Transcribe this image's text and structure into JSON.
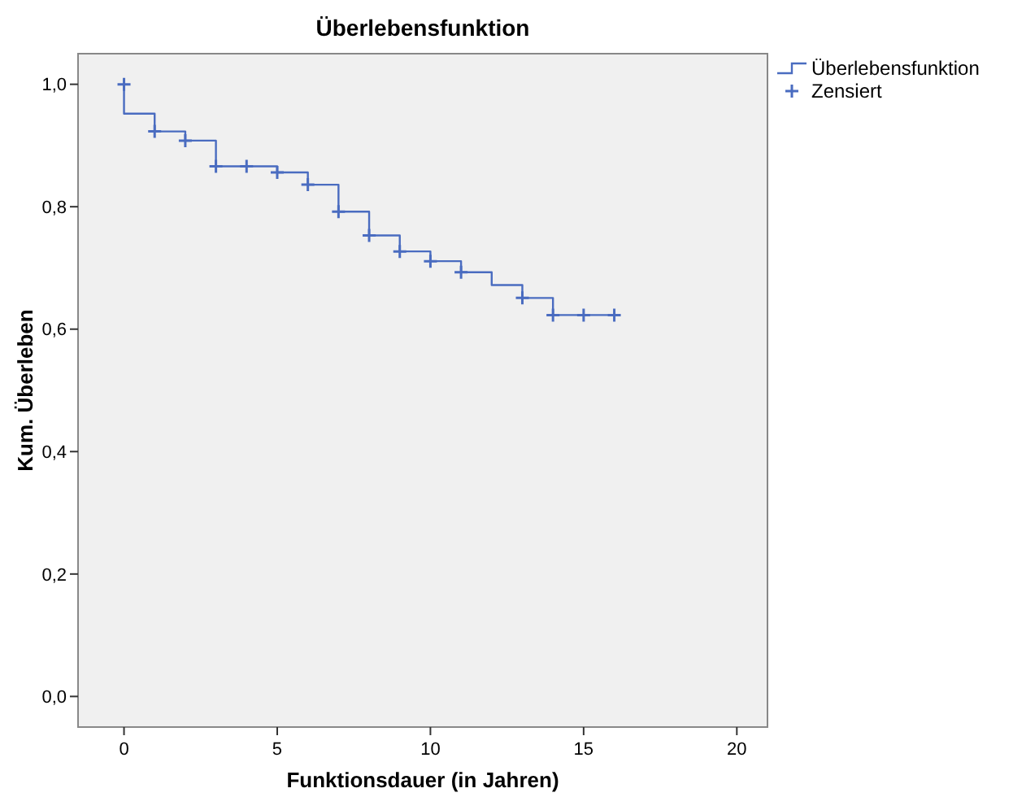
{
  "chart_data": {
    "type": "step",
    "title": "Überlebensfunktion",
    "xlabel": "Funktionsdauer (in Jahren)",
    "ylabel": "Kum. Überleben",
    "xlim": [
      -1.5,
      21
    ],
    "ylim": [
      -0.05,
      1.05
    ],
    "xticks": [
      0,
      5,
      10,
      15,
      20
    ],
    "yticks": [
      {
        "value": 0,
        "label": "0,0"
      },
      {
        "value": 0.2,
        "label": "0,2"
      },
      {
        "value": 0.4,
        "label": "0,4"
      },
      {
        "value": 0.6,
        "label": "0,6"
      },
      {
        "value": 0.8,
        "label": "0,8"
      },
      {
        "value": 1,
        "label": "1,0"
      }
    ],
    "grid": false,
    "legend": "top right",
    "series": [
      {
        "name": "Überlebensfunktion",
        "color": "#4a6cc0",
        "marker": "none",
        "x": [
          0,
          0,
          1,
          2,
          3,
          4,
          5,
          6,
          7,
          8,
          9,
          10,
          11,
          12,
          13,
          14,
          15,
          16
        ],
        "values": [
          1.0,
          0.952,
          0.923,
          0.908,
          0.866,
          0.866,
          0.856,
          0.836,
          0.792,
          0.753,
          0.727,
          0.711,
          0.693,
          0.672,
          0.651,
          0.623,
          0.623,
          0.623
        ]
      },
      {
        "name": "Zensiert",
        "type": "scatter",
        "color": "#4a6cc0",
        "marker": "cross",
        "x": [
          0,
          1,
          2,
          3,
          4,
          5,
          6,
          7,
          8,
          9,
          10,
          11,
          13,
          14,
          15,
          16
        ],
        "values": [
          1.0,
          0.923,
          0.908,
          0.866,
          0.866,
          0.856,
          0.836,
          0.792,
          0.753,
          0.727,
          0.711,
          0.693,
          0.651,
          0.623,
          0.623,
          0.623
        ]
      }
    ]
  }
}
